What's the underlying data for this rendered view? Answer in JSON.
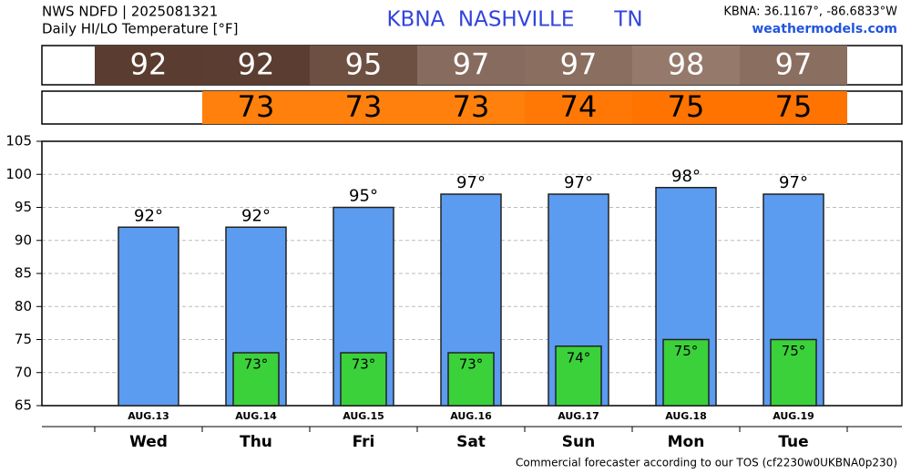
{
  "chart_data": {
    "type": "bar",
    "source": "NWS NDFD | 2025081321",
    "title": "Daily HI/LO Temperature [°F]",
    "location": "KBNA  NASHVILLE      TN",
    "coordinates": "KBNA: 36.1167°, -86.6833°W",
    "site": "weathermodels.com",
    "footer": "Commercial forecaster according to our TOS (cf2230w0UKBNA0p230)",
    "categories": [
      "Wed",
      "Thu",
      "Fri",
      "Sat",
      "Sun",
      "Mon",
      "Tue"
    ],
    "dates": [
      "AUG.13",
      "AUG.14",
      "AUG.15",
      "AUG.16",
      "AUG.17",
      "AUG.18",
      "AUG.19"
    ],
    "series": [
      {
        "color": "#5b9bf0",
        "values": [
          92,
          92,
          95,
          97,
          97,
          98,
          97
        ],
        "value_labels": [
          "92°",
          "92°",
          "95°",
          "97°",
          "97°",
          "98°",
          "97°"
        ],
        "strip_colors": [
          "#5a3d30",
          "#5b3e31",
          "#6e5043",
          "#876b5e",
          "#8a6e60",
          "#957a6c",
          "#8a6e60"
        ]
      },
      {
        "color": "#3bd13b",
        "values": [
          null,
          73,
          73,
          73,
          74,
          75,
          75
        ],
        "value_labels": [
          null,
          "73°",
          "73°",
          "73°",
          "74°",
          "75°",
          "75°"
        ],
        "strip_colors": [
          null,
          "#ff800c",
          "#ff800c",
          "#ff800c",
          "#ff7806",
          "#ff7300",
          "#ff7300"
        ]
      }
    ],
    "ylim": [
      65,
      105
    ],
    "yticks": [
      65,
      70,
      75,
      80,
      85,
      90,
      95,
      100,
      105
    ],
    "grid": true
  }
}
